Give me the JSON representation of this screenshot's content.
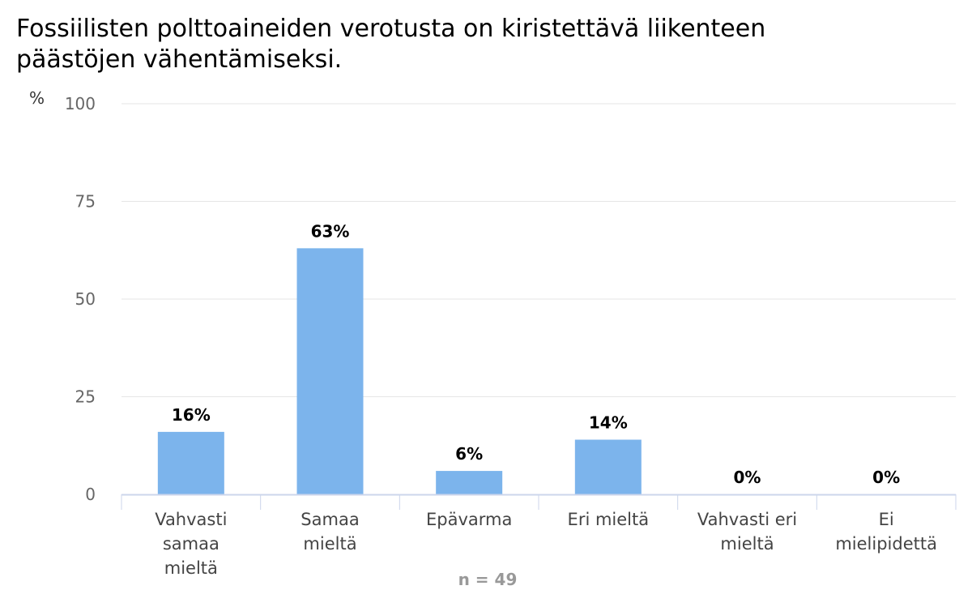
{
  "chart_data": {
    "type": "bar",
    "title_lines": [
      "Fossiilisten polttoaineiden verotusta on kiristettävä liikenteen",
      "päästöjen vähentämiseksi."
    ],
    "ylabel": "%",
    "ylim": [
      0,
      100
    ],
    "yticks": [
      "0",
      "25",
      "50",
      "75",
      "100"
    ],
    "categories": [
      [
        "Vahvasti",
        "samaa",
        "mieltä"
      ],
      [
        "Samaa",
        "mieltä"
      ],
      [
        "Epävarma"
      ],
      [
        "Eri mieltä"
      ],
      [
        "Vahvasti eri",
        "mieltä"
      ],
      [
        "Ei",
        "mielipidettä"
      ]
    ],
    "values": [
      16,
      63,
      6,
      14,
      0,
      0
    ],
    "data_labels": [
      "16%",
      "63%",
      "6%",
      "14%",
      "0%",
      "0%"
    ],
    "grid": true,
    "legend": "none",
    "bar_color": "#7cb4ec",
    "note": "n = 49"
  }
}
